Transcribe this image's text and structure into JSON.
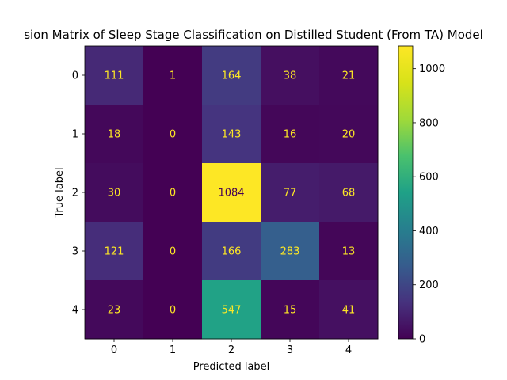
{
  "chart_data": {
    "type": "heatmap",
    "title": "sion Matrix of Sleep Stage Classification on Distilled Student (From TA) Model",
    "xlabel": "Predicted label",
    "ylabel": "True label",
    "x_categories": [
      "0",
      "1",
      "2",
      "3",
      "4"
    ],
    "y_categories": [
      "0",
      "1",
      "2",
      "3",
      "4"
    ],
    "values": [
      [
        111,
        1,
        164,
        38,
        21
      ],
      [
        18,
        0,
        143,
        16,
        20
      ],
      [
        30,
        0,
        1084,
        77,
        68
      ],
      [
        121,
        0,
        166,
        283,
        13
      ],
      [
        23,
        0,
        547,
        15,
        41
      ]
    ],
    "colormap": "viridis",
    "colorbar": {
      "min": 0,
      "max": 1084,
      "ticks": [
        0,
        200,
        400,
        600,
        800,
        1000
      ]
    },
    "grid": false,
    "text_colors": {
      "light": "#fde725",
      "dark": "#440154"
    }
  }
}
